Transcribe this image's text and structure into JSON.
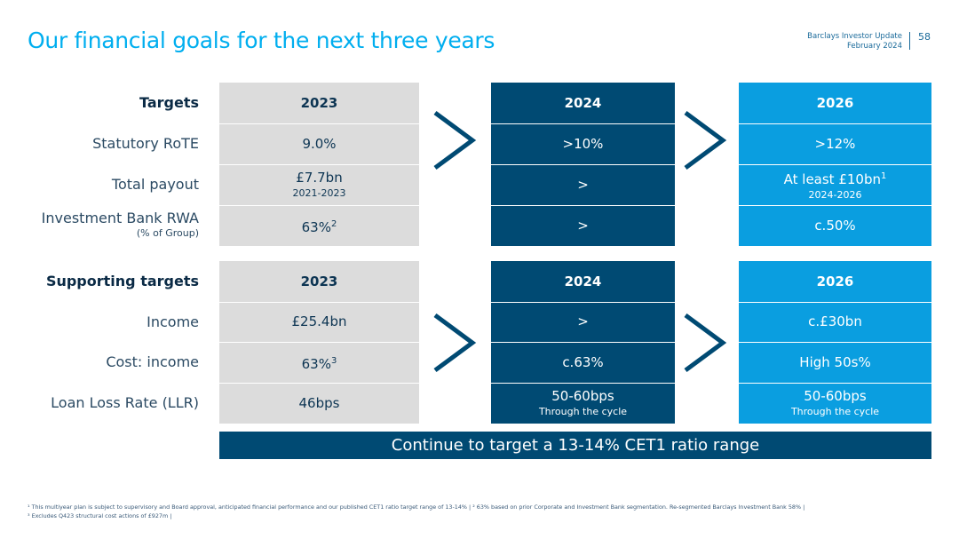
{
  "header": {
    "title": "Our financial goals for the next three years",
    "brand_line1": "Barclays Investor Update",
    "brand_line2": "February 2024",
    "page_number": "58"
  },
  "targets": {
    "label": "Targets",
    "col_2023": "2023",
    "col_2024": "2024",
    "col_2026": "2026",
    "rows": [
      {
        "label": "Statutory RoTE",
        "sub": "",
        "v2023": "9.0%",
        "v2023_sup": "",
        "v2023_sub": "",
        "v2024": ">10%",
        "v2024_sub": "",
        "v2026": ">12%",
        "v2026_sup": "",
        "v2026_sub": ""
      },
      {
        "label": "Total payout",
        "sub": "",
        "v2023": "£7.7bn",
        "v2023_sup": "",
        "v2023_sub": "2021-2023",
        "v2024": ">",
        "v2024_sub": "",
        "v2026": "At least £10bn",
        "v2026_sup": "1",
        "v2026_sub": "2024-2026"
      },
      {
        "label": "Investment Bank RWA",
        "sub": "(% of Group)",
        "v2023": "63%",
        "v2023_sup": "2",
        "v2023_sub": "",
        "v2024": ">",
        "v2024_sub": "",
        "v2026": "c.50%",
        "v2026_sup": "",
        "v2026_sub": ""
      }
    ]
  },
  "supporting": {
    "label": "Supporting targets",
    "col_2023": "2023",
    "col_2024": "2024",
    "col_2026": "2026",
    "rows": [
      {
        "label": "Income",
        "v2023": "£25.4bn",
        "v2023_sup": "",
        "v2024": ">",
        "v2024_sub": "",
        "v2026": "c.£30bn",
        "v2026_sub": ""
      },
      {
        "label": "Cost: income",
        "v2023": "63%",
        "v2023_sup": "3",
        "v2024": "c.63%",
        "v2024_sub": "",
        "v2026": "High 50s%",
        "v2026_sub": ""
      },
      {
        "label": "Loan Loss Rate (LLR)",
        "v2023": "46bps",
        "v2023_sup": "",
        "v2024": "50-60bps",
        "v2024_sub": "Through the cycle",
        "v2026": "50-60bps",
        "v2026_sub": "Through the cycle"
      }
    ]
  },
  "banner": "Continue to target a 13-14% CET1 ratio range",
  "footnotes": {
    "line1": "¹ This multiyear plan is subject to supervisory and Board approval, anticipated financial performance and our published CET1 ratio target range of 13-14% | ² 63% based on prior Corporate and Investment Bank segmentation. Re-segmented Barclays Investment Bank 58% |",
    "line2": "³ Excludes Q423 structural cost actions of £927m |"
  },
  "colors": {
    "title": "#00aeef",
    "col_2023": "#dcdcdc",
    "col_2024": "#004a73",
    "col_2026": "#0a9ee0",
    "chevron": "#004a73"
  }
}
